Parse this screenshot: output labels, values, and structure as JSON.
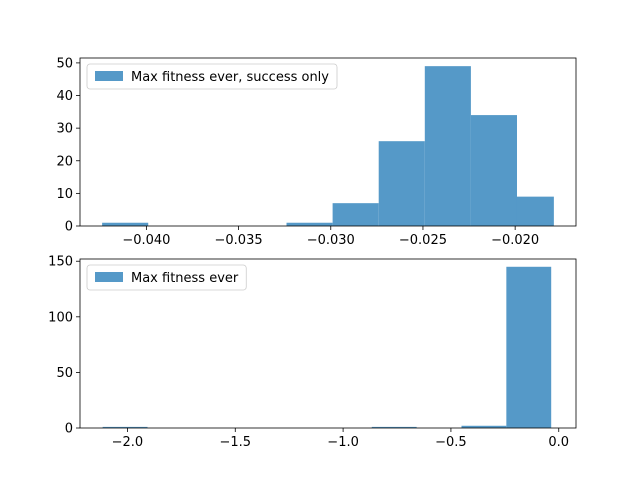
{
  "chart_data": [
    {
      "type": "bar",
      "subtype": "histogram",
      "title": "",
      "xlabel": "",
      "ylabel": "",
      "xlim": [
        -0.0436,
        -0.0167
      ],
      "ylim": [
        0,
        51.5
      ],
      "xticks": [
        -0.04,
        -0.035,
        -0.03,
        -0.025,
        -0.02
      ],
      "xtick_labels": [
        "−0.040",
        "−0.035",
        "−0.030",
        "−0.025",
        "−0.020"
      ],
      "yticks": [
        0,
        10,
        20,
        30,
        40,
        50
      ],
      "ytick_labels": [
        "0",
        "10",
        "20",
        "30",
        "40",
        "50"
      ],
      "bin_edges": [
        -0.0424,
        -0.0399,
        -0.0374,
        -0.0349,
        -0.0324,
        -0.0299,
        -0.0274,
        -0.0249,
        -0.0224,
        -0.0199,
        -0.0179
      ],
      "counts": [
        1,
        0,
        0,
        0,
        1,
        7,
        26,
        49,
        34,
        9
      ],
      "color": "#5599c8",
      "legend": {
        "label": "Max fitness ever, success only",
        "position": "upper left"
      },
      "grid": false
    },
    {
      "type": "bar",
      "subtype": "histogram",
      "title": "",
      "xlabel": "",
      "ylabel": "",
      "xlim": [
        -2.22,
        0.08
      ],
      "ylim": [
        0,
        152
      ],
      "xticks": [
        -2.0,
        -1.5,
        -1.0,
        -0.5,
        0.0
      ],
      "xtick_labels": [
        "−2.0",
        "−1.5",
        "−1.0",
        "−0.5",
        "0.0"
      ],
      "yticks": [
        0,
        50,
        100,
        150
      ],
      "ytick_labels": [
        "0",
        "50",
        "100",
        "150"
      ],
      "bin_edges": [
        -2.115,
        -1.907,
        -1.699,
        -1.491,
        -1.283,
        -1.075,
        -0.867,
        -0.659,
        -0.451,
        -0.243,
        -0.035
      ],
      "counts": [
        1,
        0,
        0,
        0,
        0,
        0,
        1,
        0,
        2,
        145
      ],
      "color": "#5599c8",
      "legend": {
        "label": "Max fitness ever",
        "position": "upper left"
      },
      "grid": false
    }
  ]
}
